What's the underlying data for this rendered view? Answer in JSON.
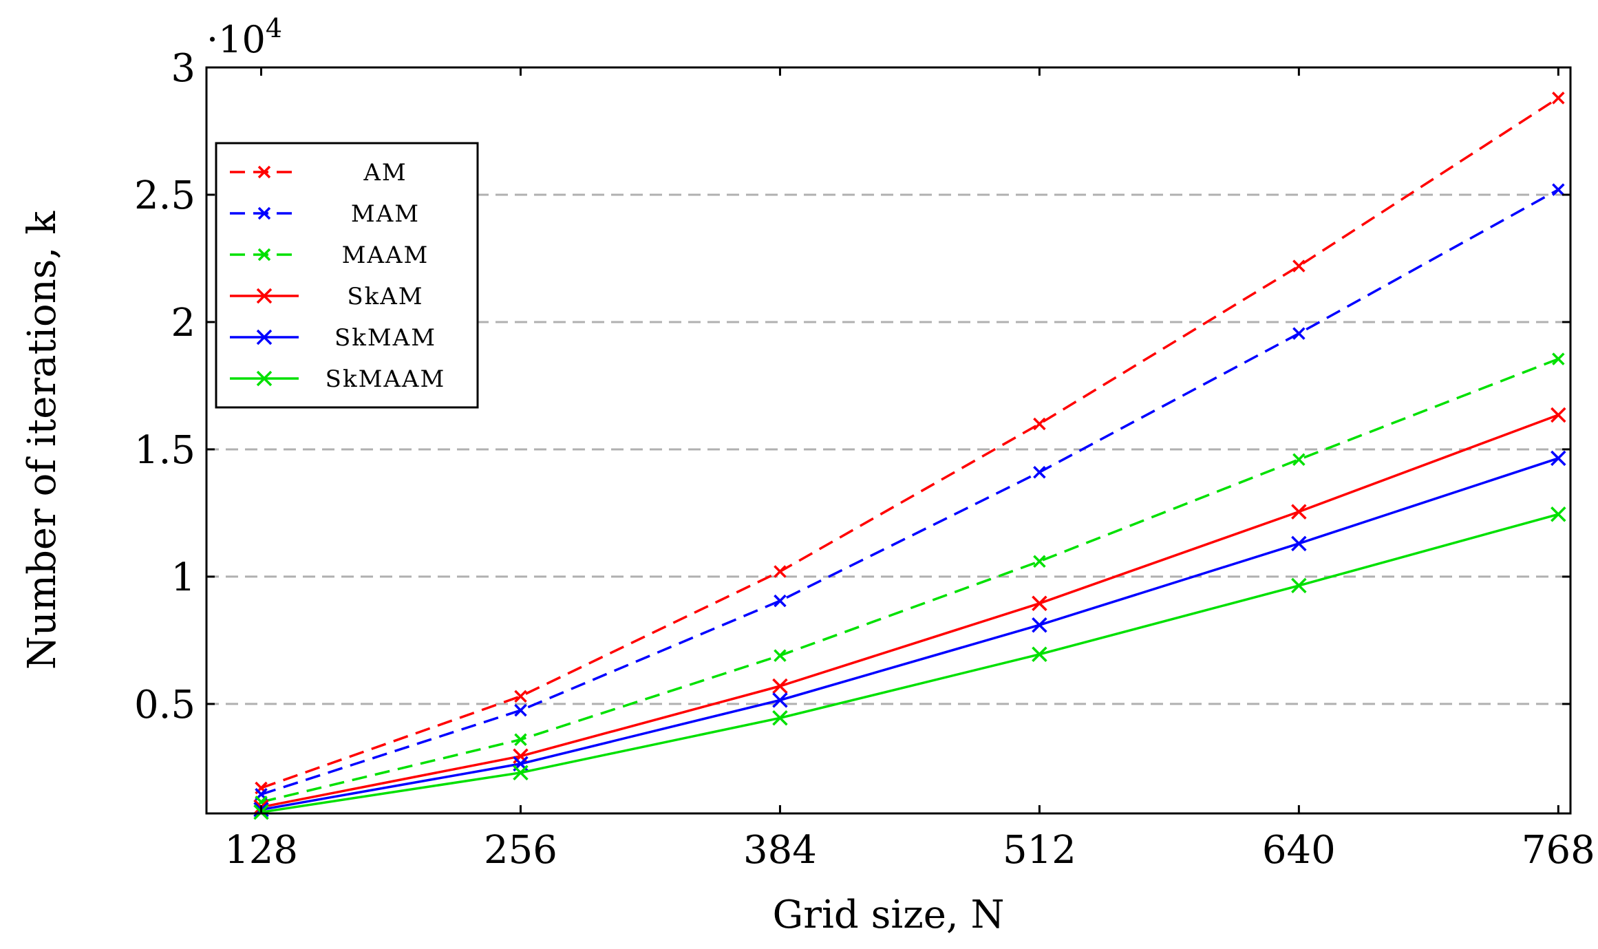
{
  "chart_data": {
    "type": "line",
    "title": "",
    "xlabel": "Grid size, N",
    "ylabel": "Number of iterations, k",
    "y_multiplier": "·10^4",
    "categories": [
      128,
      256,
      384,
      512,
      640,
      768
    ],
    "xlim": [
      101,
      774
    ],
    "ylim": [
      700,
      30000
    ],
    "y_ticks": [
      5000,
      10000,
      15000,
      20000,
      25000,
      30000
    ],
    "y_tick_labels": [
      "0.5",
      "1",
      "1.5",
      "2",
      "2.5",
      "3"
    ],
    "x_tick_labels": [
      "128",
      "256",
      "384",
      "512",
      "640",
      "768"
    ],
    "grid": "horizontal dashed",
    "legend_position": "top-left",
    "series": [
      {
        "name": "AM",
        "color": "#ff0000",
        "dash": "dashed",
        "values": [
          1700,
          5300,
          10200,
          16000,
          22200,
          28800
        ]
      },
      {
        "name": "MAM",
        "color": "#0000ff",
        "dash": "dashed",
        "values": [
          1450,
          4750,
          9050,
          14100,
          19550,
          25200
        ]
      },
      {
        "name": "MAAM",
        "color": "#00e000",
        "dash": "dashed",
        "values": [
          1150,
          3600,
          6900,
          10600,
          14600,
          18550
        ]
      },
      {
        "name": "SkAM",
        "color": "#ff0000",
        "dash": "solid",
        "values": [
          950,
          2950,
          5700,
          8950,
          12550,
          16350
        ]
      },
      {
        "name": "SkMAM",
        "color": "#0000ff",
        "dash": "solid",
        "values": [
          850,
          2650,
          5150,
          8100,
          11300,
          14650
        ]
      },
      {
        "name": "SkMAAM",
        "color": "#00e000",
        "dash": "solid",
        "values": [
          750,
          2300,
          4450,
          6950,
          9650,
          12450
        ]
      }
    ]
  }
}
